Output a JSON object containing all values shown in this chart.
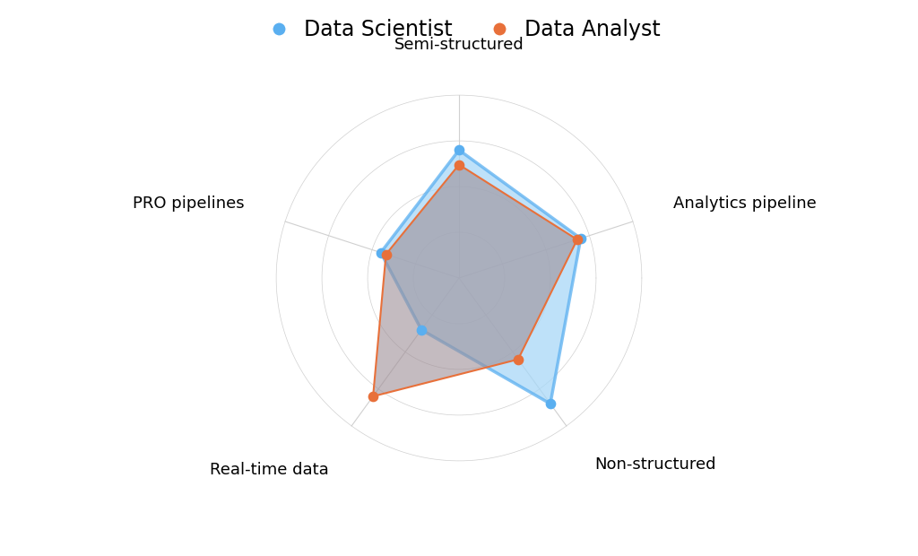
{
  "categories": [
    "Semi-structured",
    "Analytics pipeline",
    "Non-structured",
    "Real-time data",
    "PRO pipelines"
  ],
  "data_scientist": [
    0.7,
    0.7,
    0.85,
    0.35,
    0.45
  ],
  "data_analyst": [
    0.62,
    0.68,
    0.55,
    0.8,
    0.42
  ],
  "scientist_color": "#5aaff0",
  "analyst_color": "#e8703a",
  "scientist_fill": "#a8d8f8",
  "analyst_fill": "#9e8e96",
  "background_color": "#ffffff",
  "legend_scientist": "Data Scientist",
  "legend_analyst": "Data Analyst",
  "grid_color": "#d0d0d0",
  "n_rings": 4
}
